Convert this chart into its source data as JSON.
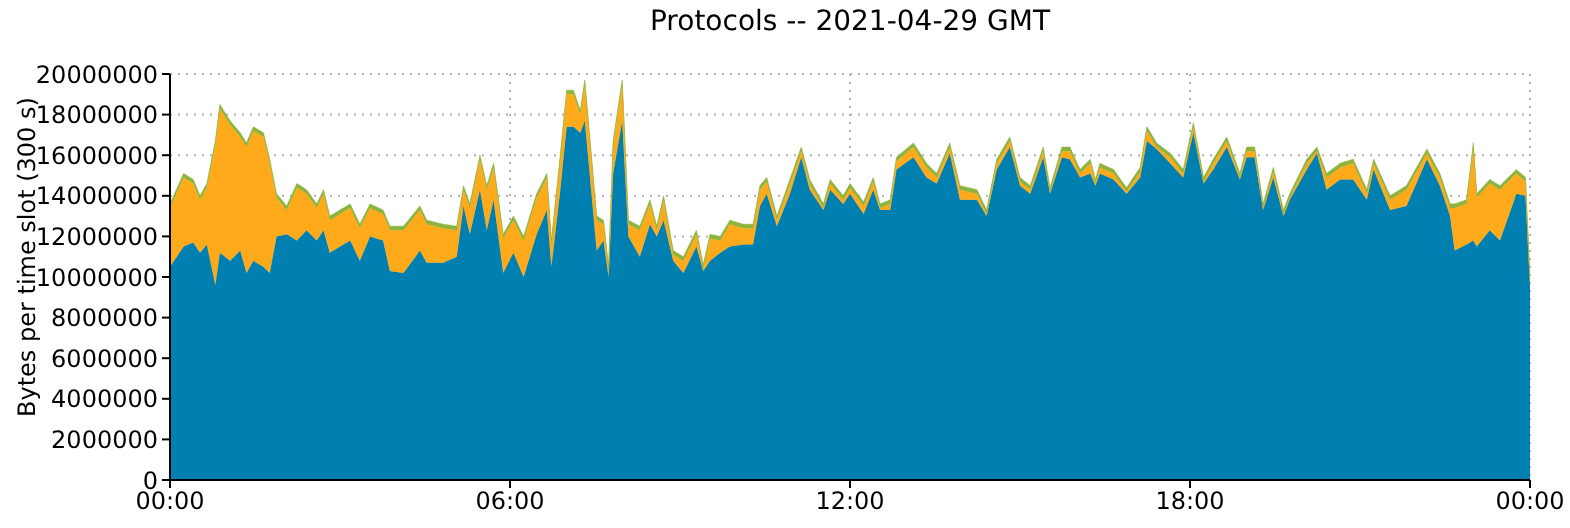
{
  "chart_data": {
    "type": "area",
    "stacked": true,
    "title": "Protocols -- 2021-04-29 GMT",
    "ylabel": "Bytes per time slot (300 s)",
    "grid": true,
    "xlim": [
      0,
      24
    ],
    "xticks": [
      {
        "value": 0,
        "label": "00:00"
      },
      {
        "value": 6,
        "label": "06:00"
      },
      {
        "value": 12,
        "label": "12:00"
      },
      {
        "value": 18,
        "label": "18:00"
      },
      {
        "value": 24,
        "label": "00:00"
      }
    ],
    "ylim": [
      0,
      20000000
    ],
    "yticks": [
      0,
      2000000,
      4000000,
      6000000,
      8000000,
      10000000,
      12000000,
      14000000,
      16000000,
      18000000,
      20000000
    ],
    "x": [
      0,
      0.24,
      0.41,
      0.53,
      0.65,
      0.8,
      0.88,
      1.06,
      1.24,
      1.35,
      1.47,
      1.65,
      1.76,
      1.88,
      2.06,
      2.24,
      2.41,
      2.59,
      2.71,
      2.82,
      3.0,
      3.18,
      3.35,
      3.53,
      3.76,
      3.88,
      4.12,
      4.41,
      4.53,
      4.82,
      5.06,
      5.18,
      5.29,
      5.47,
      5.59,
      5.71,
      5.88,
      6.06,
      6.24,
      6.47,
      6.65,
      6.73,
      6.88,
      7.0,
      7.12,
      7.24,
      7.32,
      7.53,
      7.65,
      7.74,
      7.82,
      7.98,
      8.09,
      8.29,
      8.47,
      8.59,
      8.71,
      8.88,
      9.06,
      9.29,
      9.41,
      9.53,
      9.71,
      9.88,
      10.12,
      10.29,
      10.41,
      10.53,
      10.71,
      10.94,
      11.14,
      11.29,
      11.53,
      11.65,
      11.88,
      12.0,
      12.24,
      12.41,
      12.53,
      12.71,
      12.82,
      13.12,
      13.35,
      13.53,
      13.76,
      13.94,
      14.24,
      14.41,
      14.59,
      14.82,
      15.0,
      15.18,
      15.41,
      15.53,
      15.74,
      15.88,
      16.06,
      16.24,
      16.33,
      16.41,
      16.65,
      16.88,
      17.12,
      17.24,
      17.41,
      17.65,
      17.88,
      18.06,
      18.24,
      18.41,
      18.65,
      18.88,
      19.0,
      19.14,
      19.29,
      19.47,
      19.65,
      19.76,
      20.06,
      20.24,
      20.41,
      20.65,
      20.88,
      21.12,
      21.24,
      21.53,
      21.82,
      22.18,
      22.41,
      22.59,
      22.67,
      22.88,
      23.0,
      23.06,
      23.29,
      23.47,
      23.76,
      23.92,
      24.0
    ],
    "series": [
      {
        "color": "#0080b0",
        "values": [
          10500000,
          11500000,
          11700000,
          11200000,
          11600000,
          9600000,
          11200000,
          10800000,
          11300000,
          10200000,
          10800000,
          10500000,
          10200000,
          12000000,
          12100000,
          11800000,
          12300000,
          11800000,
          12300000,
          11200000,
          11500000,
          11800000,
          10800000,
          12000000,
          11800000,
          10300000,
          10200000,
          11300000,
          10700000,
          10700000,
          11000000,
          13500000,
          12100000,
          14300000,
          12300000,
          13800000,
          10200000,
          11200000,
          10000000,
          12100000,
          13300000,
          10500000,
          14100000,
          17400000,
          17400000,
          17100000,
          17700000,
          11300000,
          11800000,
          10000000,
          15100000,
          17700000,
          12000000,
          11000000,
          12600000,
          12000000,
          12800000,
          10800000,
          10200000,
          11500000,
          10300000,
          10800000,
          11200000,
          11500000,
          11600000,
          11600000,
          13500000,
          14100000,
          12500000,
          14100000,
          15900000,
          14300000,
          13300000,
          14300000,
          13600000,
          14100000,
          13100000,
          14300000,
          13300000,
          13300000,
          15300000,
          15900000,
          14900000,
          14600000,
          16100000,
          13800000,
          13800000,
          13000000,
          15300000,
          16400000,
          14500000,
          14100000,
          15900000,
          14100000,
          15900000,
          15800000,
          14900000,
          15100000,
          14500000,
          15100000,
          14800000,
          14100000,
          14900000,
          16700000,
          16300000,
          15600000,
          14900000,
          17100000,
          14600000,
          15300000,
          16400000,
          14800000,
          15900000,
          15900000,
          13300000,
          14900000,
          13000000,
          13800000,
          15300000,
          16100000,
          14300000,
          14800000,
          14800000,
          13800000,
          15300000,
          13300000,
          13500000,
          15800000,
          14500000,
          13000000,
          11300000,
          11600000,
          11800000,
          11500000,
          12300000,
          11800000,
          14100000,
          14000000,
          9600000
        ]
      },
      {
        "color": "#ffaa1a",
        "values": [
          2900000,
          3400000,
          2900000,
          2600000,
          2800000,
          6900000,
          7100000,
          6700000,
          5600000,
          6200000,
          6400000,
          6400000,
          5400000,
          1900000,
          1200000,
          2600000,
          1800000,
          1600000,
          1800000,
          1600000,
          1600000,
          1600000,
          1600000,
          1400000,
          1300000,
          2000000,
          2100000,
          2000000,
          1900000,
          1700000,
          1300000,
          800000,
          1300000,
          1500000,
          2000000,
          1600000,
          1700000,
          1600000,
          1800000,
          1800000,
          1600000,
          1100000,
          1500000,
          1600000,
          1600000,
          900000,
          1800000,
          1500000,
          800000,
          300000,
          1400000,
          1800000,
          600000,
          1300000,
          1000000,
          300000,
          1000000,
          300000,
          600000,
          600000,
          100000,
          1100000,
          600000,
          1100000,
          800000,
          800000,
          800000,
          600000,
          300000,
          500000,
          300000,
          300000,
          100000,
          300000,
          200000,
          300000,
          400000,
          400000,
          100000,
          300000,
          400000,
          500000,
          500000,
          300000,
          300000,
          500000,
          300000,
          100000,
          300000,
          300000,
          200000,
          200000,
          300000,
          100000,
          300000,
          400000,
          200000,
          500000,
          100000,
          300000,
          300000,
          100000,
          300000,
          500000,
          100000,
          300000,
          200000,
          300000,
          100000,
          300000,
          300000,
          100000,
          300000,
          300000,
          100000,
          300000,
          100000,
          100000,
          300000,
          100000,
          600000,
          600000,
          800000,
          300000,
          300000,
          500000,
          800000,
          300000,
          400000,
          400000,
          2100000,
          2000000,
          4600000,
          2400000,
          2300000,
          2500000,
          1000000,
          700000,
          200000
        ]
      },
      {
        "color": "#8cb33b",
        "values": [
          200000,
          200000,
          200000,
          200000,
          200000,
          200000,
          200000,
          200000,
          200000,
          200000,
          200000,
          200000,
          200000,
          200000,
          200000,
          200000,
          200000,
          200000,
          200000,
          200000,
          200000,
          200000,
          200000,
          200000,
          200000,
          200000,
          200000,
          200000,
          200000,
          200000,
          200000,
          200000,
          200000,
          200000,
          200000,
          200000,
          200000,
          200000,
          200000,
          200000,
          200000,
          200000,
          200000,
          200000,
          200000,
          200000,
          200000,
          200000,
          200000,
          200000,
          200000,
          200000,
          200000,
          200000,
          200000,
          200000,
          200000,
          200000,
          200000,
          200000,
          200000,
          200000,
          200000,
          200000,
          200000,
          200000,
          200000,
          200000,
          200000,
          200000,
          200000,
          200000,
          200000,
          200000,
          200000,
          200000,
          200000,
          200000,
          200000,
          200000,
          200000,
          200000,
          200000,
          200000,
          200000,
          200000,
          200000,
          200000,
          200000,
          200000,
          200000,
          200000,
          200000,
          200000,
          200000,
          200000,
          200000,
          200000,
          200000,
          200000,
          200000,
          200000,
          200000,
          200000,
          200000,
          200000,
          200000,
          200000,
          200000,
          200000,
          200000,
          200000,
          200000,
          200000,
          200000,
          200000,
          200000,
          200000,
          200000,
          200000,
          200000,
          200000,
          200000,
          200000,
          200000,
          200000,
          200000,
          200000,
          200000,
          200000,
          200000,
          200000,
          200000,
          200000,
          200000,
          200000,
          200000,
          200000,
          200000
        ]
      }
    ]
  }
}
